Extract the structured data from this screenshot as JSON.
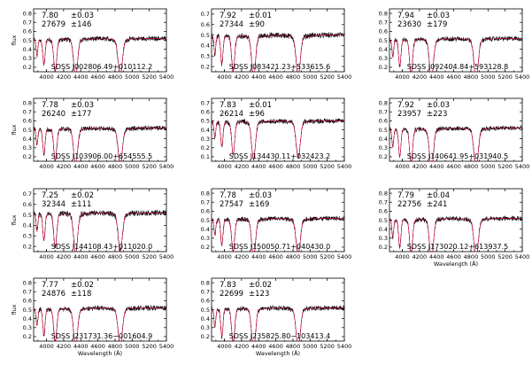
{
  "chart_data": {
    "type": "line",
    "x_tick_labels": [
      "4000",
      "4200",
      "4400",
      "4600",
      "4800",
      "5000",
      "5200",
      "5400"
    ],
    "xlim": [
      3850,
      5400
    ],
    "colors": {
      "observed": "#000000",
      "model": "#e3003a"
    },
    "panels": [
      {
        "id": "SDSS J002806.49+010112.2",
        "logg": "7.80",
        "logg_err": "±0.03",
        "teff": "27679",
        "teff_err": "±146",
        "ylim": [
          0.15,
          0.85
        ],
        "y_ticks": [
          "0.2",
          "0.3",
          "0.4",
          "0.5",
          "0.6",
          "0.7",
          "0.8"
        ],
        "continuum": 0.52,
        "depth": 1.0,
        "ylabel": "flux",
        "xlabel": ""
      },
      {
        "id": "SDSS J083421.23+533615.6",
        "logg": "7.92",
        "logg_err": "±0.01",
        "teff": "27344",
        "teff_err": "±90",
        "ylim": [
          0.15,
          0.75
        ],
        "y_ticks": [
          "0.2",
          "0.3",
          "0.4",
          "0.5",
          "0.6",
          "0.7"
        ],
        "continuum": 0.5,
        "depth": 0.95,
        "ylabel": "",
        "xlabel": ""
      },
      {
        "id": "SDSS J092404.84+593128.8",
        "logg": "7.94",
        "logg_err": "±0.03",
        "teff": "23630",
        "teff_err": "±179",
        "ylim": [
          0.15,
          0.85
        ],
        "y_ticks": [
          "0.2",
          "0.3",
          "0.4",
          "0.5",
          "0.6",
          "0.7",
          "0.8"
        ],
        "continuum": 0.52,
        "depth": 1.1,
        "ylabel": "",
        "xlabel": ""
      },
      {
        "id": "SDSS J103906.00+654555.5",
        "logg": "7.78",
        "logg_err": "±0.03",
        "teff": "26240",
        "teff_err": "±177",
        "ylim": [
          0.15,
          0.85
        ],
        "y_ticks": [
          "0.2",
          "0.3",
          "0.4",
          "0.5",
          "0.6",
          "0.7",
          "0.8"
        ],
        "continuum": 0.52,
        "depth": 1.0,
        "ylabel": "flux",
        "xlabel": ""
      },
      {
        "id": "SDSS J134430.11+032423.2",
        "logg": "7.83",
        "logg_err": "±0.01",
        "teff": "26214",
        "teff_err": "±96",
        "ylim": [
          0.05,
          0.75
        ],
        "y_ticks": [
          "0.1",
          "0.2",
          "0.3",
          "0.4",
          "0.5",
          "0.6",
          "0.7"
        ],
        "continuum": 0.5,
        "depth": 1.0,
        "ylabel": "",
        "xlabel": ""
      },
      {
        "id": "SDSS J140641.95+031940.5",
        "logg": "7.92",
        "logg_err": "±0.03",
        "teff": "23957",
        "teff_err": "±223",
        "ylim": [
          0.15,
          0.85
        ],
        "y_ticks": [
          "0.2",
          "0.3",
          "0.4",
          "0.5",
          "0.6",
          "0.7",
          "0.8"
        ],
        "continuum": 0.52,
        "depth": 1.1,
        "ylabel": "",
        "xlabel": ""
      },
      {
        "id": "SDSS J144108.43+011020.0",
        "logg": "7.25",
        "logg_err": "±0.02",
        "teff": "32344",
        "teff_err": "±111",
        "ylim": [
          0.15,
          0.75
        ],
        "y_ticks": [
          "0.2",
          "0.3",
          "0.4",
          "0.5",
          "0.6",
          "0.7"
        ],
        "continuum": 0.52,
        "depth": 0.9,
        "ylabel": "flux",
        "xlabel": ""
      },
      {
        "id": "SDSS J150050.71+040430.0",
        "logg": "7.78",
        "logg_err": "±0.03",
        "teff": "27547",
        "teff_err": "±169",
        "ylim": [
          0.15,
          0.85
        ],
        "y_ticks": [
          "0.2",
          "0.3",
          "0.4",
          "0.5",
          "0.6",
          "0.7",
          "0.8"
        ],
        "continuum": 0.52,
        "depth": 1.0,
        "ylabel": "",
        "xlabel": ""
      },
      {
        "id": "SDSS J173020.12+613937.5",
        "logg": "7.79",
        "logg_err": "±0.04",
        "teff": "22756",
        "teff_err": "±241",
        "ylim": [
          0.15,
          0.85
        ],
        "y_ticks": [
          "0.2",
          "0.3",
          "0.4",
          "0.5",
          "0.6",
          "0.7",
          "0.8"
        ],
        "continuum": 0.52,
        "depth": 1.1,
        "ylabel": "",
        "xlabel": "Wavelength (Å)"
      },
      {
        "id": "SDSS J231731.36−001604.9",
        "logg": "7.77",
        "logg_err": "±0.02",
        "teff": "24876",
        "teff_err": "±118",
        "ylim": [
          0.15,
          0.85
        ],
        "y_ticks": [
          "0.2",
          "0.3",
          "0.4",
          "0.5",
          "0.6",
          "0.7",
          "0.8"
        ],
        "continuum": 0.52,
        "depth": 1.05,
        "ylabel": "flux",
        "xlabel": "Wavelength (Å)"
      },
      {
        "id": "SDSS J235825.80−103413.4",
        "logg": "7.83",
        "logg_err": "±0.02",
        "teff": "22699",
        "teff_err": "±123",
        "ylim": [
          0.15,
          0.85
        ],
        "y_ticks": [
          "0.2",
          "0.3",
          "0.4",
          "0.5",
          "0.6",
          "0.7",
          "0.8"
        ],
        "continuum": 0.52,
        "depth": 1.1,
        "ylabel": "",
        "xlabel": "Wavelength (Å)"
      }
    ]
  }
}
